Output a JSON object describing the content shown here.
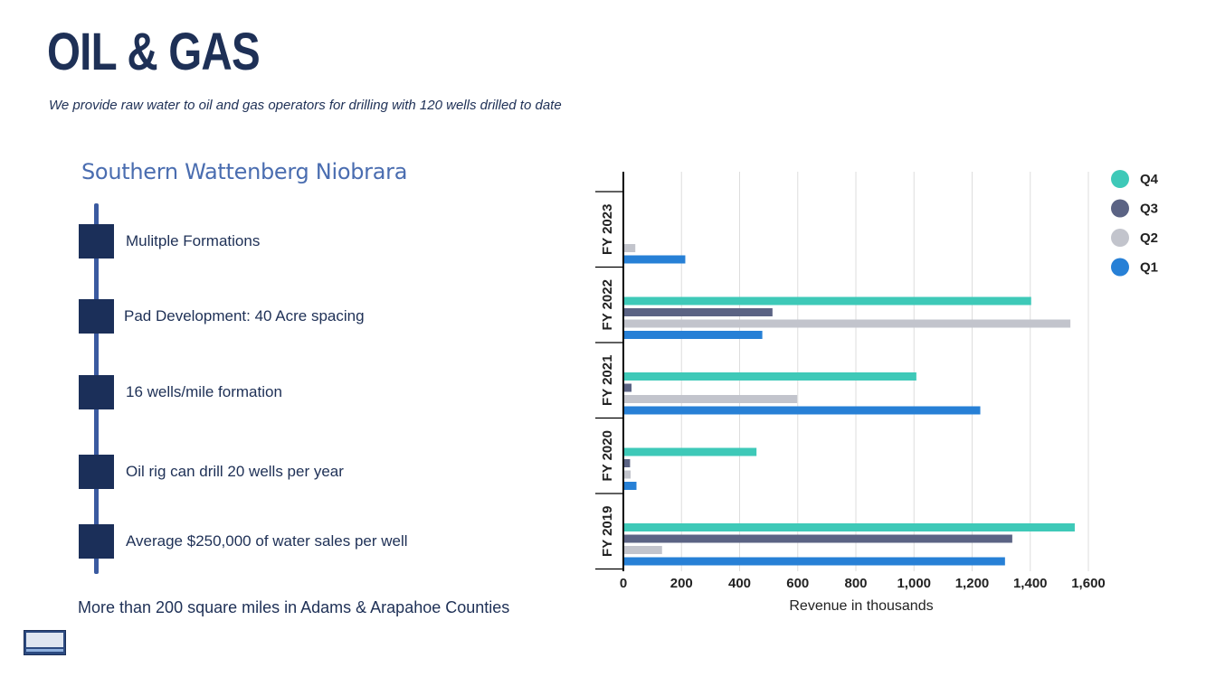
{
  "header": {
    "title": "OIL & GAS",
    "subtitle": "We provide raw water to oil and gas operators for drilling with 120 wells drilled to date"
  },
  "left_panel": {
    "section_title": "Southern Wattenberg Niobrara",
    "items": [
      "Mulitple Formations",
      "Pad Development: 40 Acre spacing",
      "16 wells/mile formation",
      "Oil rig can drill 20 wells per year",
      "Average $250,000 of water sales per well"
    ],
    "footer_note": "More than 200 square miles in Adams & Arapahoe Counties"
  },
  "chart_data": {
    "type": "bar",
    "orientation": "horizontal",
    "categories": [
      "FY 2023",
      "FY 2022",
      "FY 2021",
      "FY 2020",
      "FY 2019"
    ],
    "series": [
      {
        "name": "Q4",
        "color": "#3ec9b8",
        "values": [
          0,
          1400,
          1005,
          455,
          1550
        ]
      },
      {
        "name": "Q3",
        "color": "#5b6384",
        "values": [
          0,
          510,
          25,
          20,
          1335
        ]
      },
      {
        "name": "Q2",
        "color": "#c2c4cc",
        "values": [
          38,
          1535,
          595,
          22,
          130
        ]
      },
      {
        "name": "Q1",
        "color": "#2780d6",
        "values": [
          210,
          475,
          1225,
          42,
          1310
        ]
      }
    ],
    "legend_order": [
      "Q4",
      "Q3",
      "Q2",
      "Q1"
    ],
    "xlabel": "Revenue in thousands",
    "xlim": [
      0,
      1600
    ],
    "xticks": [
      0,
      200,
      400,
      600,
      800,
      1000,
      1200,
      1400,
      1600
    ],
    "xtick_labels": [
      "0",
      "200",
      "400",
      "600",
      "800",
      "1,000",
      "1,200",
      "1,400",
      "1,600"
    ],
    "grid": true,
    "legend_position": "top-right"
  }
}
